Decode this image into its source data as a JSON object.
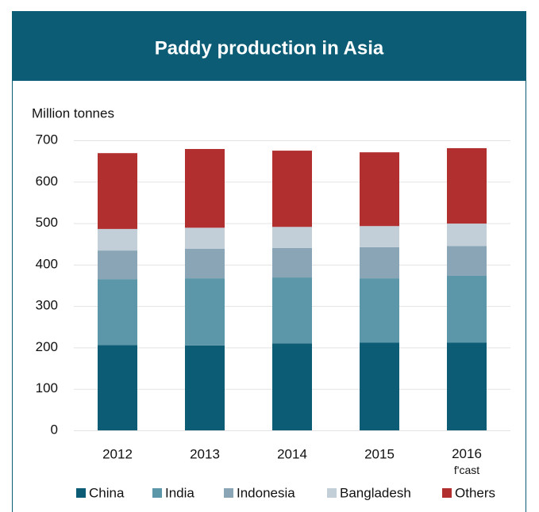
{
  "chart_data": {
    "type": "stacked_bar",
    "title": "Paddy production in Asia",
    "y_label": "Million tonnes",
    "categories": [
      "2012",
      "2013",
      "2014",
      "2015",
      "2016\nf'cast"
    ],
    "series": [
      {
        "name": "China",
        "color": "#0b5c74",
        "values": [
          206,
          205,
          210,
          212,
          212
        ]
      },
      {
        "name": "India",
        "color": "#5b97a8",
        "values": [
          159,
          162,
          159,
          155,
          161
        ]
      },
      {
        "name": "Indonesia",
        "color": "#8aa6b6",
        "values": [
          69,
          71,
          71,
          75,
          72
        ]
      },
      {
        "name": "Bangladesh",
        "color": "#c2cfd9",
        "values": [
          52,
          51,
          51,
          51,
          54
        ]
      },
      {
        "name": "Others",
        "color": "#b22f30",
        "values": [
          183,
          190,
          184,
          178,
          182
        ]
      }
    ],
    "ylim": [
      0,
      700
    ],
    "yticks": [
      0,
      100,
      200,
      300,
      400,
      500,
      600,
      700
    ],
    "grid": true
  }
}
